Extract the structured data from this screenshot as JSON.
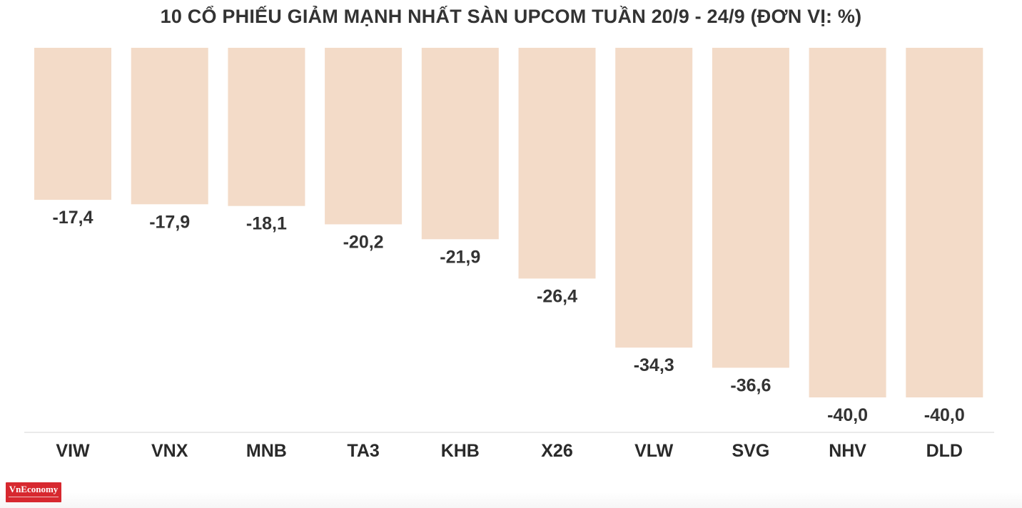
{
  "title": "10 CỔ PHIẾU GIẢM MẠNH NHẤT SÀN UPCOM TUẦN 20/9 - 24/9 (ĐƠN VỊ: %)",
  "logo": {
    "text": "VnEconomy"
  },
  "colors": {
    "bar": "#f3dbc8",
    "text": "#333333",
    "axis": "#e4e4e4",
    "logo": "#d7282f"
  },
  "chart_data": {
    "type": "bar",
    "title": "10 CỔ PHIẾU GIẢM MẠNH NHẤT SÀN UPCOM TUẦN 20/9 - 24/9 (ĐƠN VỊ: %)",
    "categories": [
      "VIW",
      "VNX",
      "MNB",
      "TA3",
      "KHB",
      "X26",
      "VLW",
      "SVG",
      "NHV",
      "DLD"
    ],
    "values": [
      -17.4,
      -17.9,
      -18.1,
      -20.2,
      -21.9,
      -26.4,
      -34.3,
      -36.6,
      -40.0,
      -40.0
    ],
    "value_labels": [
      "-17,4",
      "-17,9",
      "-18,1",
      "-20,2",
      "-21,9",
      "-26,4",
      "-34,3",
      "-36,6",
      "-40,0",
      "-40,0"
    ],
    "xlabel": "",
    "ylabel": "",
    "ylim": [
      -40,
      0
    ],
    "grid": false,
    "legend": "none"
  }
}
